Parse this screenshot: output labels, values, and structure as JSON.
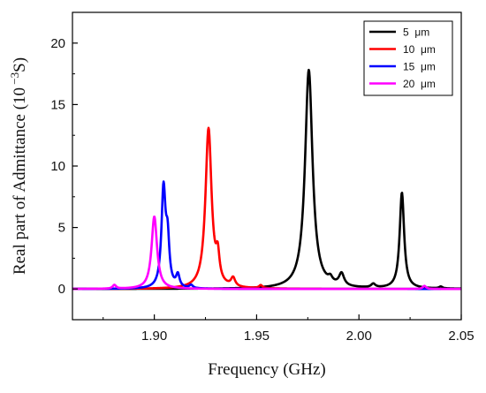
{
  "chart_data": {
    "type": "line",
    "title": "",
    "xlabel": "Frequency (GHz)",
    "ylabel_main": "Real part of Admittance (10",
    "ylabel_sup": " −3",
    "ylabel_end": "S)",
    "xlim": [
      1.86,
      2.05
    ],
    "ylim": [
      -2.5,
      22.5
    ],
    "xticks": [
      1.9,
      1.95,
      2.0,
      2.05
    ],
    "xtick_labels": [
      "1.90",
      "1.95",
      "2.00",
      "2.05"
    ],
    "yticks": [
      0,
      5,
      10,
      15,
      20
    ],
    "ytick_labels": [
      "0",
      "5",
      "10",
      "15",
      "20"
    ],
    "grid": false,
    "legend_position": "top-right",
    "series": [
      {
        "name": "5  μm",
        "color": "#000000",
        "peaks": [
          {
            "x": 1.9755,
            "h": 17.8,
            "w": 0.0022
          },
          {
            "x": 1.9915,
            "h": 1.0,
            "w": 0.0015
          },
          {
            "x": 1.986,
            "h": 0.4,
            "w": 0.0012
          },
          {
            "x": 2.007,
            "h": 0.3,
            "w": 0.0012
          },
          {
            "x": 2.021,
            "h": 7.8,
            "w": 0.0013
          },
          {
            "x": 2.04,
            "h": 0.15,
            "w": 0.001
          }
        ]
      },
      {
        "name": "10  μm",
        "color": "#ff0000",
        "peaks": [
          {
            "x": 1.9265,
            "h": 13.0,
            "w": 0.0018
          },
          {
            "x": 1.931,
            "h": 2.0,
            "w": 0.001
          },
          {
            "x": 1.9385,
            "h": 0.7,
            "w": 0.0012
          },
          {
            "x": 1.952,
            "h": 0.25,
            "w": 0.001
          }
        ]
      },
      {
        "name": "15  μm",
        "color": "#0000ff",
        "peaks": [
          {
            "x": 1.9045,
            "h": 8.0,
            "w": 0.0012
          },
          {
            "x": 1.9065,
            "h": 3.5,
            "w": 0.001
          },
          {
            "x": 1.9115,
            "h": 1.0,
            "w": 0.001
          },
          {
            "x": 1.918,
            "h": 0.25,
            "w": 0.001
          }
        ]
      },
      {
        "name": "20  μm",
        "color": "#ff00ff",
        "peaks": [
          {
            "x": 1.9,
            "h": 5.9,
            "w": 0.0016
          },
          {
            "x": 1.8805,
            "h": 0.3,
            "w": 0.001
          },
          {
            "x": 2.032,
            "h": 0.25,
            "w": 0.001
          }
        ]
      }
    ]
  }
}
